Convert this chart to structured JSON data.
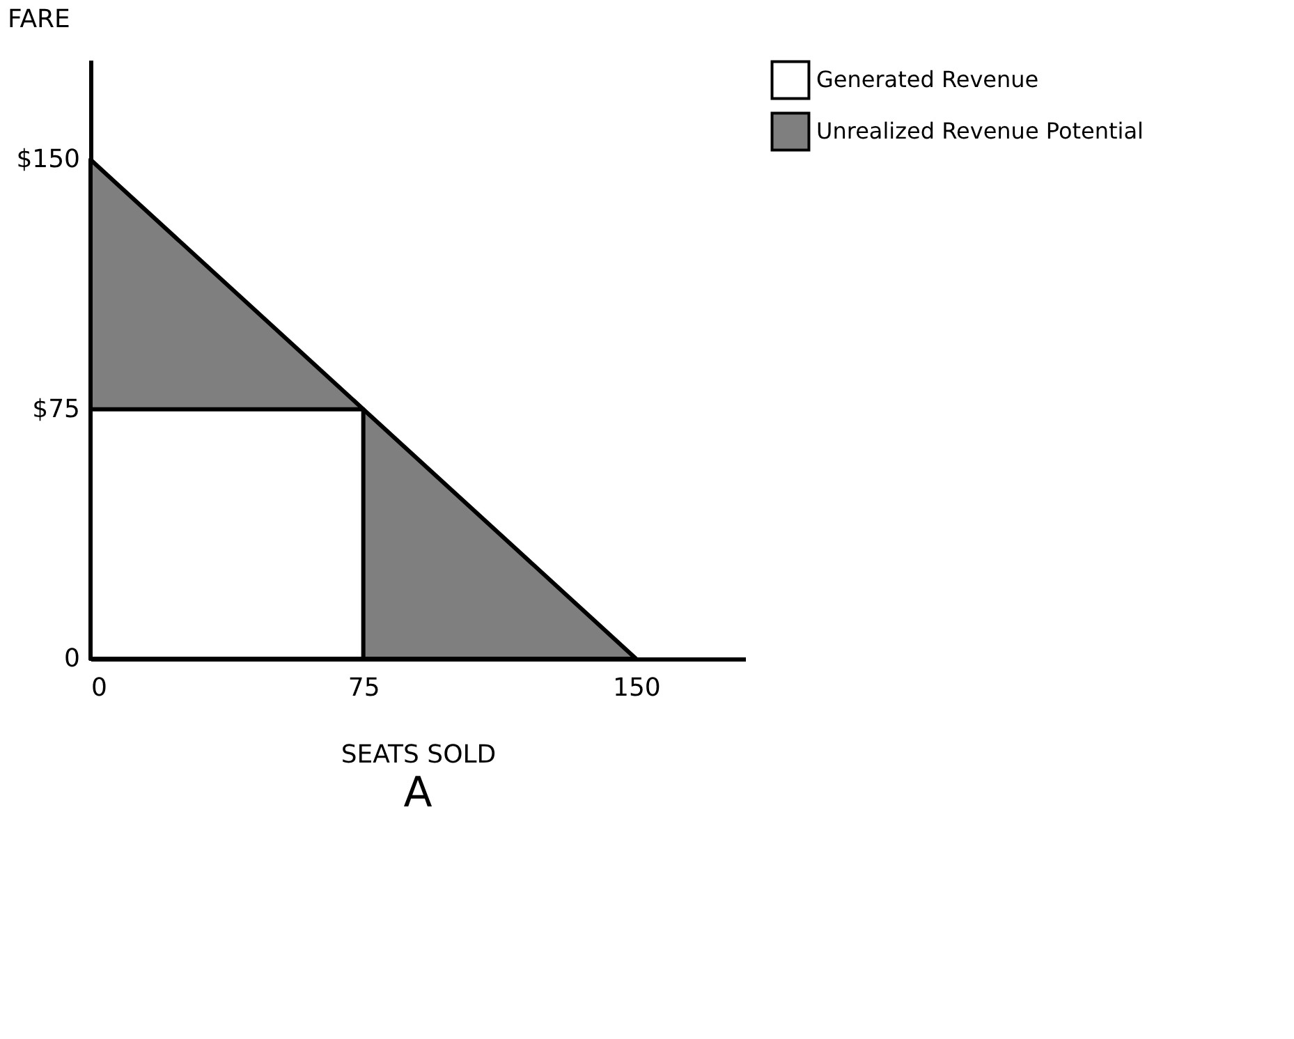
{
  "chart_data": {
    "type": "area",
    "title": "A",
    "xlabel": "SEATS SOLD",
    "ylabel": "FARE",
    "xlim": [
      0,
      180
    ],
    "ylim": [
      0,
      180
    ],
    "xticks": [
      0,
      75,
      150
    ],
    "yticks": [
      0,
      {
        "value": 75,
        "label": "$75"
      },
      {
        "value": 150,
        "label": "$150"
      }
    ],
    "grid": false,
    "legend": "right",
    "series": [
      {
        "name": "Generated Revenue",
        "color": "#ffffff",
        "x": [
          0,
          75
        ],
        "values": [
          75,
          75
        ]
      },
      {
        "name": "Unrealized Revenue Potential",
        "color": "#7f7f7f",
        "x": [
          0,
          75,
          150
        ],
        "values": [
          150,
          75,
          0
        ]
      }
    ]
  }
}
